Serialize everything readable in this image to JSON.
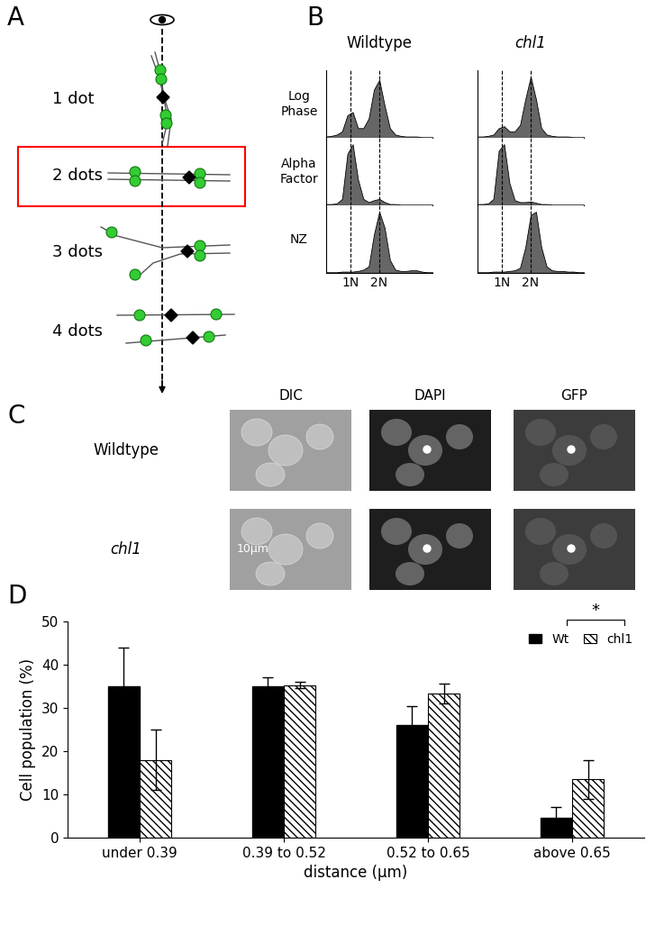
{
  "panel_labels": [
    "A",
    "B",
    "C",
    "D"
  ],
  "panel_A": {
    "states": [
      "1 dot",
      "2 dots",
      "3 dots",
      "4 dots"
    ],
    "highlighted": "2 dots"
  },
  "panel_B": {
    "x": [
      0,
      0.05,
      0.1,
      0.15,
      0.2,
      0.25,
      0.3,
      0.35,
      0.4,
      0.45,
      0.5,
      0.55,
      0.6,
      0.65,
      0.7,
      0.75,
      0.8,
      0.85,
      0.9,
      0.95,
      1
    ],
    "xlim": [
      0,
      1
    ],
    "ylim": [
      0,
      1.05
    ],
    "row_labels": [
      "Log\nPhase",
      "Alpha\nFactor",
      "NZ"
    ],
    "ploidy_marks": [
      {
        "label": "1N",
        "value": 0.23
      },
      {
        "label": "2N",
        "value": 0.5
      }
    ],
    "columns": [
      {
        "title": "Wildtype",
        "rows": [
          [
            0.02,
            0.03,
            0.05,
            0.1,
            0.35,
            0.4,
            0.15,
            0.15,
            0.3,
            0.75,
            0.9,
            0.5,
            0.15,
            0.05,
            0.03,
            0.02,
            0.02,
            0.02,
            0.01,
            0.01,
            0.01
          ],
          [
            0.02,
            0.02,
            0.03,
            0.1,
            0.8,
            0.95,
            0.4,
            0.1,
            0.05,
            0.08,
            0.1,
            0.05,
            0.02,
            0.02,
            0.01,
            0.01,
            0.01,
            0.01,
            0.01,
            0.01,
            0.01
          ],
          [
            0.01,
            0.01,
            0.01,
            0.02,
            0.02,
            0.02,
            0.03,
            0.05,
            0.1,
            0.6,
            0.95,
            0.7,
            0.2,
            0.05,
            0.03,
            0.03,
            0.04,
            0.04,
            0.02,
            0.01,
            0.01
          ]
        ]
      },
      {
        "title": "chl1",
        "rows": [
          [
            0.02,
            0.02,
            0.03,
            0.05,
            0.15,
            0.18,
            0.1,
            0.1,
            0.2,
            0.6,
            0.95,
            0.6,
            0.15,
            0.05,
            0.03,
            0.02,
            0.02,
            0.02,
            0.01,
            0.01,
            0.01
          ],
          [
            0.02,
            0.02,
            0.03,
            0.1,
            0.85,
            0.95,
            0.35,
            0.08,
            0.05,
            0.05,
            0.06,
            0.04,
            0.02,
            0.02,
            0.01,
            0.01,
            0.01,
            0.01,
            0.01,
            0.01,
            0.01
          ],
          [
            0.01,
            0.01,
            0.01,
            0.02,
            0.02,
            0.02,
            0.03,
            0.04,
            0.08,
            0.4,
            0.9,
            0.95,
            0.4,
            0.1,
            0.04,
            0.03,
            0.03,
            0.02,
            0.02,
            0.01,
            0.01
          ]
        ]
      }
    ]
  },
  "panel_C": {
    "columns": [
      "DIC",
      "DAPI",
      "GFP"
    ],
    "rows": [
      "Wildtype",
      "chl1"
    ],
    "scale_bar": "10μm"
  },
  "chart_data": {
    "type": "bar",
    "categories": [
      "under 0.39",
      "0.39 to 0.52",
      "0.52 to 0.65",
      "above 0.65"
    ],
    "series": [
      {
        "name": "Wt",
        "color": "#000000",
        "values": [
          35,
          35,
          26,
          4.5
        ],
        "errors": [
          9,
          2,
          4.5,
          2.5
        ]
      },
      {
        "name": "chl1",
        "color": "#000000",
        "values": [
          18,
          35.3,
          33.3,
          13.5
        ],
        "errors": [
          7,
          0.7,
          2.3,
          4.5
        ]
      }
    ],
    "x_label": "distance (μm)",
    "y_label": "Cell population (%)",
    "ylim": [
      0,
      50
    ],
    "yticks": [
      0,
      10,
      20,
      30,
      40,
      50
    ],
    "legend": "upper right",
    "annotations": [
      "*"
    ]
  }
}
